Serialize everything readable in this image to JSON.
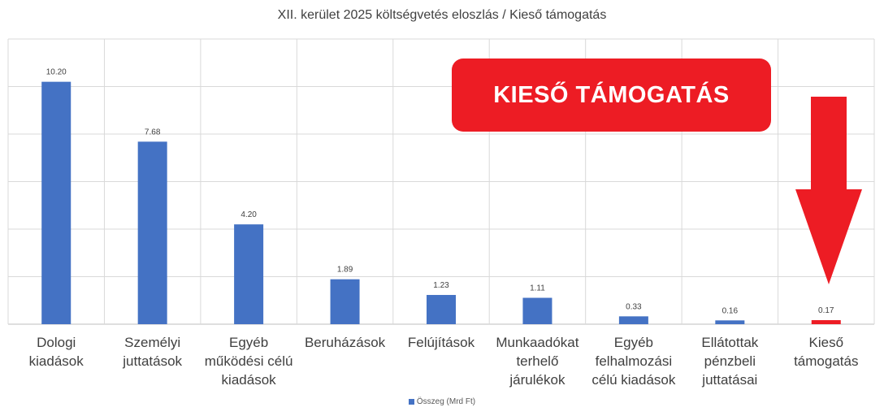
{
  "chart_data": {
    "type": "bar",
    "title": "XII. kerület 2025 költségvetés eloszlás / Kieső támogatás",
    "categories": [
      [
        "Dologi",
        "kiadások"
      ],
      [
        "Személyi",
        "juttatások"
      ],
      [
        "Egyéb",
        "működési célú",
        "kiadások"
      ],
      [
        "Beruházások"
      ],
      [
        "Felújítások"
      ],
      [
        "Munkaadókat",
        "terhelő",
        "járulékok"
      ],
      [
        "Egyéb",
        "felhalmozási",
        "célú kiadások"
      ],
      [
        "Ellátottak",
        "pénzbeli",
        "juttatásai"
      ],
      [
        "Kieső",
        "támogatás"
      ]
    ],
    "series": [
      {
        "name": "Összeg (Mrd Ft)",
        "values": [
          10.2,
          7.68,
          4.2,
          1.89,
          1.23,
          1.11,
          0.33,
          0.16,
          0.17
        ],
        "labels": [
          "10.20",
          "7.68",
          "4.20",
          "1.89",
          "1.23",
          "1.11",
          "0.33",
          "0.16",
          "0.17"
        ]
      }
    ],
    "bar_colors": [
      "#4472c4",
      "#4472c4",
      "#4472c4",
      "#4472c4",
      "#4472c4",
      "#4472c4",
      "#4472c4",
      "#4472c4",
      "#ed1c24"
    ],
    "ylim": [
      0,
      12
    ],
    "grid": true,
    "legend_position": "bottom"
  },
  "callout": {
    "text": "KIESŐ TÁMOGATÁS",
    "color": "#ed1c24"
  },
  "arrow": {
    "color": "#ed1c24",
    "icon": "down-arrow-icon"
  },
  "colors": {
    "series": "#4472c4",
    "highlight": "#ed1c24",
    "grid": "#d9d9d9"
  }
}
